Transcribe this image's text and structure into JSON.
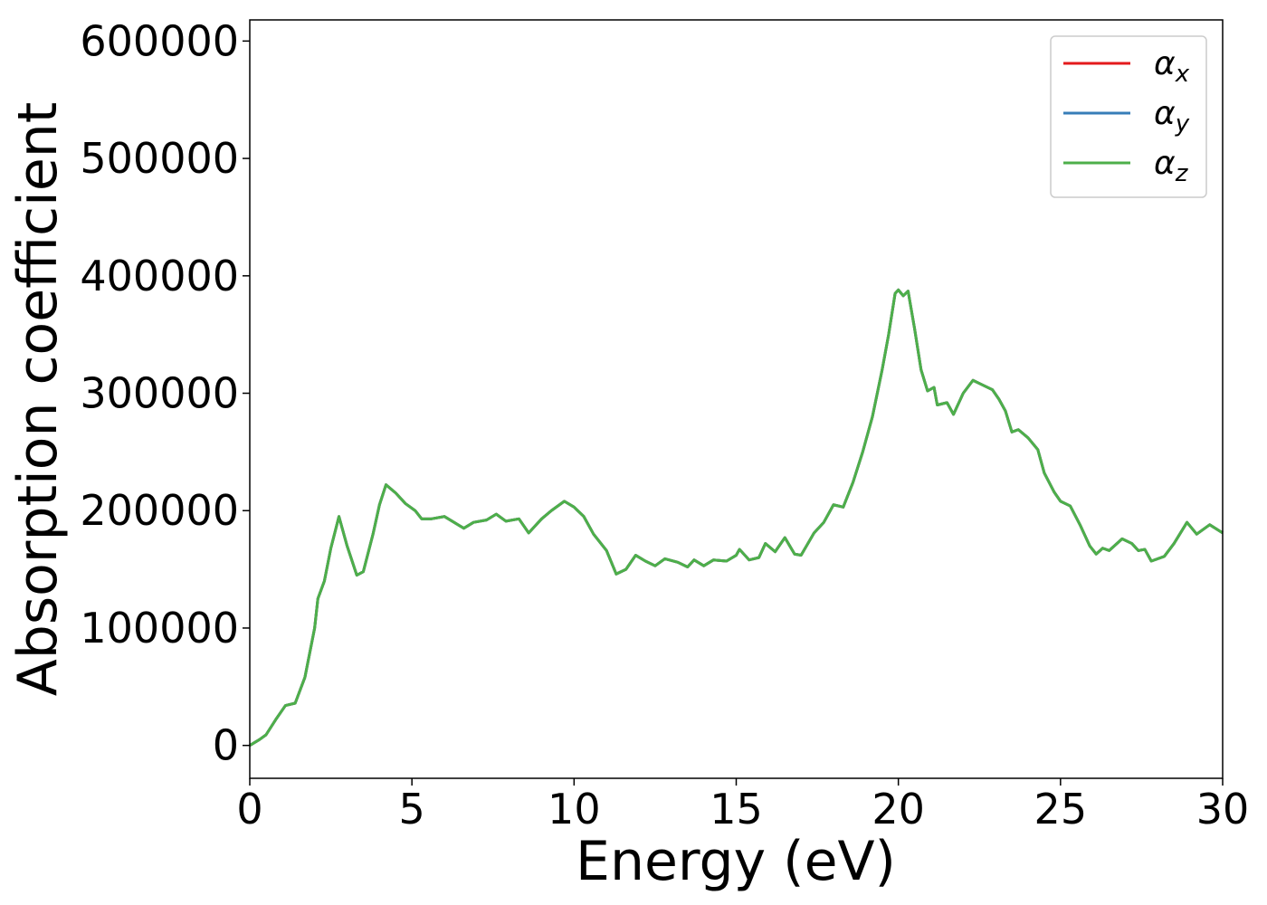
{
  "chart_data": {
    "type": "line",
    "xlabel": "Energy (eV)",
    "ylabel": "Absorption coefficient",
    "x": [
      0,
      0.3,
      0.5,
      0.8,
      1.1,
      1.4,
      1.7,
      2.0,
      2.1,
      2.3,
      2.5,
      2.75,
      3.0,
      3.3,
      3.5,
      3.8,
      4.0,
      4.2,
      4.5,
      4.8,
      5.1,
      5.3,
      5.6,
      6.0,
      6.3,
      6.6,
      6.9,
      7.3,
      7.6,
      7.9,
      8.3,
      8.6,
      9.0,
      9.3,
      9.7,
      10.0,
      10.3,
      10.6,
      11.0,
      11.3,
      11.6,
      11.9,
      12.2,
      12.5,
      12.8,
      13.2,
      13.5,
      13.7,
      14.0,
      14.3,
      14.7,
      15.0,
      15.1,
      15.4,
      15.7,
      15.9,
      16.2,
      16.5,
      16.8,
      17.0,
      17.4,
      17.7,
      18.0,
      18.3,
      18.6,
      18.9,
      19.2,
      19.5,
      19.7,
      19.9,
      20.0,
      20.15,
      20.3,
      20.5,
      20.7,
      20.9,
      21.1,
      21.2,
      21.5,
      21.7,
      22.0,
      22.3,
      22.6,
      22.9,
      23.1,
      23.3,
      23.5,
      23.7,
      24.0,
      24.3,
      24.5,
      24.8,
      25.0,
      25.3,
      25.6,
      25.9,
      26.1,
      26.3,
      26.5,
      26.9,
      27.2,
      27.4,
      27.6,
      27.8,
      28.2,
      28.5,
      28.9,
      29.2,
      29.6,
      30.0
    ],
    "series": [
      {
        "name": "αx",
        "color": "#e41a1c",
        "values": [
          0,
          5000,
          9000,
          22000,
          34000,
          36000,
          58000,
          100000,
          125000,
          140000,
          168000,
          195000,
          170000,
          145000,
          148000,
          180000,
          205000,
          222000,
          215000,
          206000,
          200000,
          193000,
          193000,
          195000,
          190000,
          185000,
          190000,
          192000,
          197000,
          191000,
          193000,
          181000,
          193000,
          200000,
          208000,
          203000,
          195000,
          180000,
          166000,
          146000,
          150000,
          162000,
          157000,
          153000,
          159000,
          156000,
          152000,
          158000,
          153000,
          158000,
          157000,
          162000,
          167000,
          158000,
          160000,
          172000,
          165000,
          177000,
          163000,
          162000,
          181000,
          190000,
          205000,
          203000,
          224000,
          250000,
          280000,
          320000,
          350000,
          385000,
          388000,
          383000,
          387000,
          355000,
          320000,
          302000,
          305000,
          290000,
          292000,
          282000,
          300000,
          311000,
          307000,
          303000,
          295000,
          285000,
          267000,
          269000,
          262000,
          252000,
          232000,
          216000,
          208000,
          204000,
          188000,
          170000,
          163000,
          168000,
          166000,
          176000,
          172000,
          166000,
          167000,
          157000,
          161000,
          172000,
          190000,
          180000,
          188000,
          181000
        ]
      },
      {
        "name": "αy",
        "color": "#377eb8",
        "values": [
          0,
          5000,
          9000,
          22000,
          34000,
          36000,
          58000,
          100000,
          125000,
          140000,
          168000,
          195000,
          170000,
          145000,
          148000,
          180000,
          205000,
          222000,
          215000,
          206000,
          200000,
          193000,
          193000,
          195000,
          190000,
          185000,
          190000,
          192000,
          197000,
          191000,
          193000,
          181000,
          193000,
          200000,
          208000,
          203000,
          195000,
          180000,
          166000,
          146000,
          150000,
          162000,
          157000,
          153000,
          159000,
          156000,
          152000,
          158000,
          153000,
          158000,
          157000,
          162000,
          167000,
          158000,
          160000,
          172000,
          165000,
          177000,
          163000,
          162000,
          181000,
          190000,
          205000,
          203000,
          224000,
          250000,
          280000,
          320000,
          350000,
          385000,
          388000,
          383000,
          387000,
          355000,
          320000,
          302000,
          305000,
          290000,
          292000,
          282000,
          300000,
          311000,
          307000,
          303000,
          295000,
          285000,
          267000,
          269000,
          262000,
          252000,
          232000,
          216000,
          208000,
          204000,
          188000,
          170000,
          163000,
          168000,
          166000,
          176000,
          172000,
          166000,
          167000,
          157000,
          161000,
          172000,
          190000,
          180000,
          188000,
          181000
        ]
      },
      {
        "name": "αz",
        "color": "#4daf4a",
        "values": [
          0,
          5000,
          9000,
          22000,
          34000,
          36000,
          58000,
          100000,
          125000,
          140000,
          168000,
          195000,
          170000,
          145000,
          148000,
          180000,
          205000,
          222000,
          215000,
          206000,
          200000,
          193000,
          193000,
          195000,
          190000,
          185000,
          190000,
          192000,
          197000,
          191000,
          193000,
          181000,
          193000,
          200000,
          208000,
          203000,
          195000,
          180000,
          166000,
          146000,
          150000,
          162000,
          157000,
          153000,
          159000,
          156000,
          152000,
          158000,
          153000,
          158000,
          157000,
          162000,
          167000,
          158000,
          160000,
          172000,
          165000,
          177000,
          163000,
          162000,
          181000,
          190000,
          205000,
          203000,
          224000,
          250000,
          280000,
          320000,
          350000,
          385000,
          388000,
          383000,
          387000,
          355000,
          320000,
          302000,
          305000,
          290000,
          292000,
          282000,
          300000,
          311000,
          307000,
          303000,
          295000,
          285000,
          267000,
          269000,
          262000,
          252000,
          232000,
          216000,
          208000,
          204000,
          188000,
          170000,
          163000,
          168000,
          166000,
          176000,
          172000,
          166000,
          167000,
          157000,
          161000,
          172000,
          190000,
          180000,
          188000,
          181000
        ]
      }
    ],
    "xlim": [
      0,
      30
    ],
    "xticks": [
      0,
      5,
      10,
      15,
      20,
      25,
      30
    ],
    "ylim": [
      -28000,
      618000
    ],
    "yticks": [
      0,
      100000,
      200000,
      300000,
      400000,
      500000,
      600000
    ],
    "grid": false,
    "legend": "upper right"
  }
}
